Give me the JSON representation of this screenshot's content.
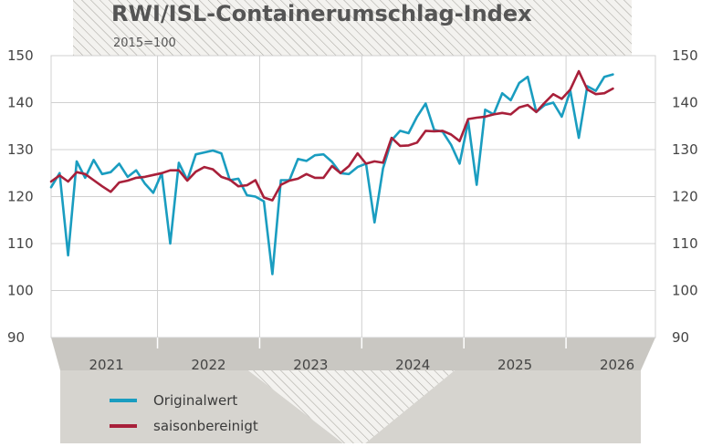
{
  "chart_data": {
    "type": "line",
    "title": "RWI/ISL-Containerumschlag-Index",
    "subtitle": "2015=100",
    "ylim": [
      90,
      150
    ],
    "y_ticks": [
      90,
      100,
      110,
      120,
      130,
      140,
      150
    ],
    "x_range": [
      "2020-12",
      "2026-11"
    ],
    "year_labels": [
      "2021",
      "2022",
      "2023",
      "2024",
      "2025",
      "2026"
    ],
    "grid": true,
    "legend_position": "bottom-left",
    "series": [
      {
        "name": "Originalwert",
        "color": "#1a9dc0",
        "points": [
          [
            "2020-12",
            122.0
          ],
          [
            "2021-01",
            125.0
          ],
          [
            "2021-02",
            107.5
          ],
          [
            "2021-03",
            127.5
          ],
          [
            "2021-04",
            124.0
          ],
          [
            "2021-05",
            127.8
          ],
          [
            "2021-06",
            124.8
          ],
          [
            "2021-07",
            125.2
          ],
          [
            "2021-08",
            127.0
          ],
          [
            "2021-09",
            124.2
          ],
          [
            "2021-10",
            125.6
          ],
          [
            "2021-11",
            122.8
          ],
          [
            "2021-12",
            120.8
          ],
          [
            "2022-01",
            125.0
          ],
          [
            "2022-02",
            110.0
          ],
          [
            "2022-03",
            127.2
          ],
          [
            "2022-04",
            123.5
          ],
          [
            "2022-05",
            129.0
          ],
          [
            "2022-06",
            129.4
          ],
          [
            "2022-07",
            129.8
          ],
          [
            "2022-08",
            129.2
          ],
          [
            "2022-09",
            123.5
          ],
          [
            "2022-10",
            123.8
          ],
          [
            "2022-11",
            120.3
          ],
          [
            "2022-12",
            120.0
          ],
          [
            "2023-01",
            119.0
          ],
          [
            "2023-02",
            103.5
          ],
          [
            "2023-03",
            123.5
          ],
          [
            "2023-04",
            123.5
          ],
          [
            "2023-05",
            128.0
          ],
          [
            "2023-06",
            127.6
          ],
          [
            "2023-07",
            128.8
          ],
          [
            "2023-08",
            129.0
          ],
          [
            "2023-09",
            127.4
          ],
          [
            "2023-10",
            125.0
          ],
          [
            "2023-11",
            124.8
          ],
          [
            "2023-12",
            126.3
          ],
          [
            "2024-01",
            127.0
          ],
          [
            "2024-02",
            114.5
          ],
          [
            "2024-03",
            126.0
          ],
          [
            "2024-04",
            132.0
          ],
          [
            "2024-05",
            134.0
          ],
          [
            "2024-06",
            133.5
          ],
          [
            "2024-07",
            137.0
          ],
          [
            "2024-08",
            139.8
          ],
          [
            "2024-09",
            134.2
          ],
          [
            "2024-10",
            133.8
          ],
          [
            "2024-11",
            131.0
          ],
          [
            "2024-12",
            127.0
          ],
          [
            "2025-01",
            136.0
          ],
          [
            "2025-02",
            122.5
          ],
          [
            "2025-03",
            138.5
          ],
          [
            "2025-04",
            137.5
          ],
          [
            "2025-05",
            142.0
          ],
          [
            "2025-06",
            140.5
          ],
          [
            "2025-07",
            144.2
          ],
          [
            "2025-08",
            145.5
          ],
          [
            "2025-09",
            138.0
          ],
          [
            "2025-10",
            139.5
          ],
          [
            "2025-11",
            140.0
          ],
          [
            "2025-12",
            137.0
          ],
          [
            "2026-01",
            142.5
          ],
          [
            "2026-02",
            132.5
          ],
          [
            "2026-03",
            143.5
          ],
          [
            "2026-04",
            142.5
          ],
          [
            "2026-05",
            145.5
          ],
          [
            "2026-06",
            146.0
          ]
        ]
      },
      {
        "name": "saisonbereinigt",
        "color": "#a8203a",
        "points": [
          [
            "2020-12",
            123.2
          ],
          [
            "2021-01",
            124.5
          ],
          [
            "2021-02",
            123.2
          ],
          [
            "2021-03",
            125.2
          ],
          [
            "2021-04",
            124.8
          ],
          [
            "2021-05",
            123.5
          ],
          [
            "2021-06",
            122.2
          ],
          [
            "2021-07",
            121.0
          ],
          [
            "2021-08",
            123.0
          ],
          [
            "2021-09",
            123.4
          ],
          [
            "2021-10",
            124.0
          ],
          [
            "2021-11",
            124.2
          ],
          [
            "2021-12",
            124.6
          ],
          [
            "2022-01",
            125.0
          ],
          [
            "2022-02",
            125.6
          ],
          [
            "2022-03",
            125.6
          ],
          [
            "2022-04",
            123.4
          ],
          [
            "2022-05",
            125.3
          ],
          [
            "2022-06",
            126.3
          ],
          [
            "2022-07",
            125.8
          ],
          [
            "2022-08",
            124.2
          ],
          [
            "2022-09",
            123.6
          ],
          [
            "2022-10",
            122.2
          ],
          [
            "2022-11",
            122.4
          ],
          [
            "2022-12",
            123.5
          ],
          [
            "2023-01",
            119.8
          ],
          [
            "2023-02",
            119.2
          ],
          [
            "2023-03",
            122.5
          ],
          [
            "2023-04",
            123.4
          ],
          [
            "2023-05",
            123.8
          ],
          [
            "2023-06",
            124.8
          ],
          [
            "2023-07",
            124.0
          ],
          [
            "2023-08",
            124.0
          ],
          [
            "2023-09",
            126.5
          ],
          [
            "2023-10",
            125.0
          ],
          [
            "2023-11",
            126.5
          ],
          [
            "2023-12",
            129.2
          ],
          [
            "2024-01",
            127.0
          ],
          [
            "2024-02",
            127.5
          ],
          [
            "2024-03",
            127.2
          ],
          [
            "2024-04",
            132.5
          ],
          [
            "2024-05",
            130.8
          ],
          [
            "2024-06",
            130.9
          ],
          [
            "2024-07",
            131.5
          ],
          [
            "2024-08",
            134.0
          ],
          [
            "2024-09",
            133.9
          ],
          [
            "2024-10",
            134.0
          ],
          [
            "2024-11",
            133.2
          ],
          [
            "2024-12",
            131.8
          ],
          [
            "2025-01",
            136.5
          ],
          [
            "2025-02",
            136.8
          ],
          [
            "2025-03",
            137.0
          ],
          [
            "2025-04",
            137.5
          ],
          [
            "2025-05",
            137.8
          ],
          [
            "2025-06",
            137.5
          ],
          [
            "2025-07",
            139.0
          ],
          [
            "2025-08",
            139.5
          ],
          [
            "2025-09",
            138.0
          ],
          [
            "2025-10",
            140.0
          ],
          [
            "2025-11",
            141.8
          ],
          [
            "2025-12",
            140.8
          ],
          [
            "2026-01",
            142.8
          ],
          [
            "2026-02",
            146.7
          ],
          [
            "2026-03",
            142.8
          ],
          [
            "2026-04",
            141.8
          ],
          [
            "2026-05",
            142.0
          ],
          [
            "2026-06",
            143.0
          ]
        ]
      }
    ]
  }
}
